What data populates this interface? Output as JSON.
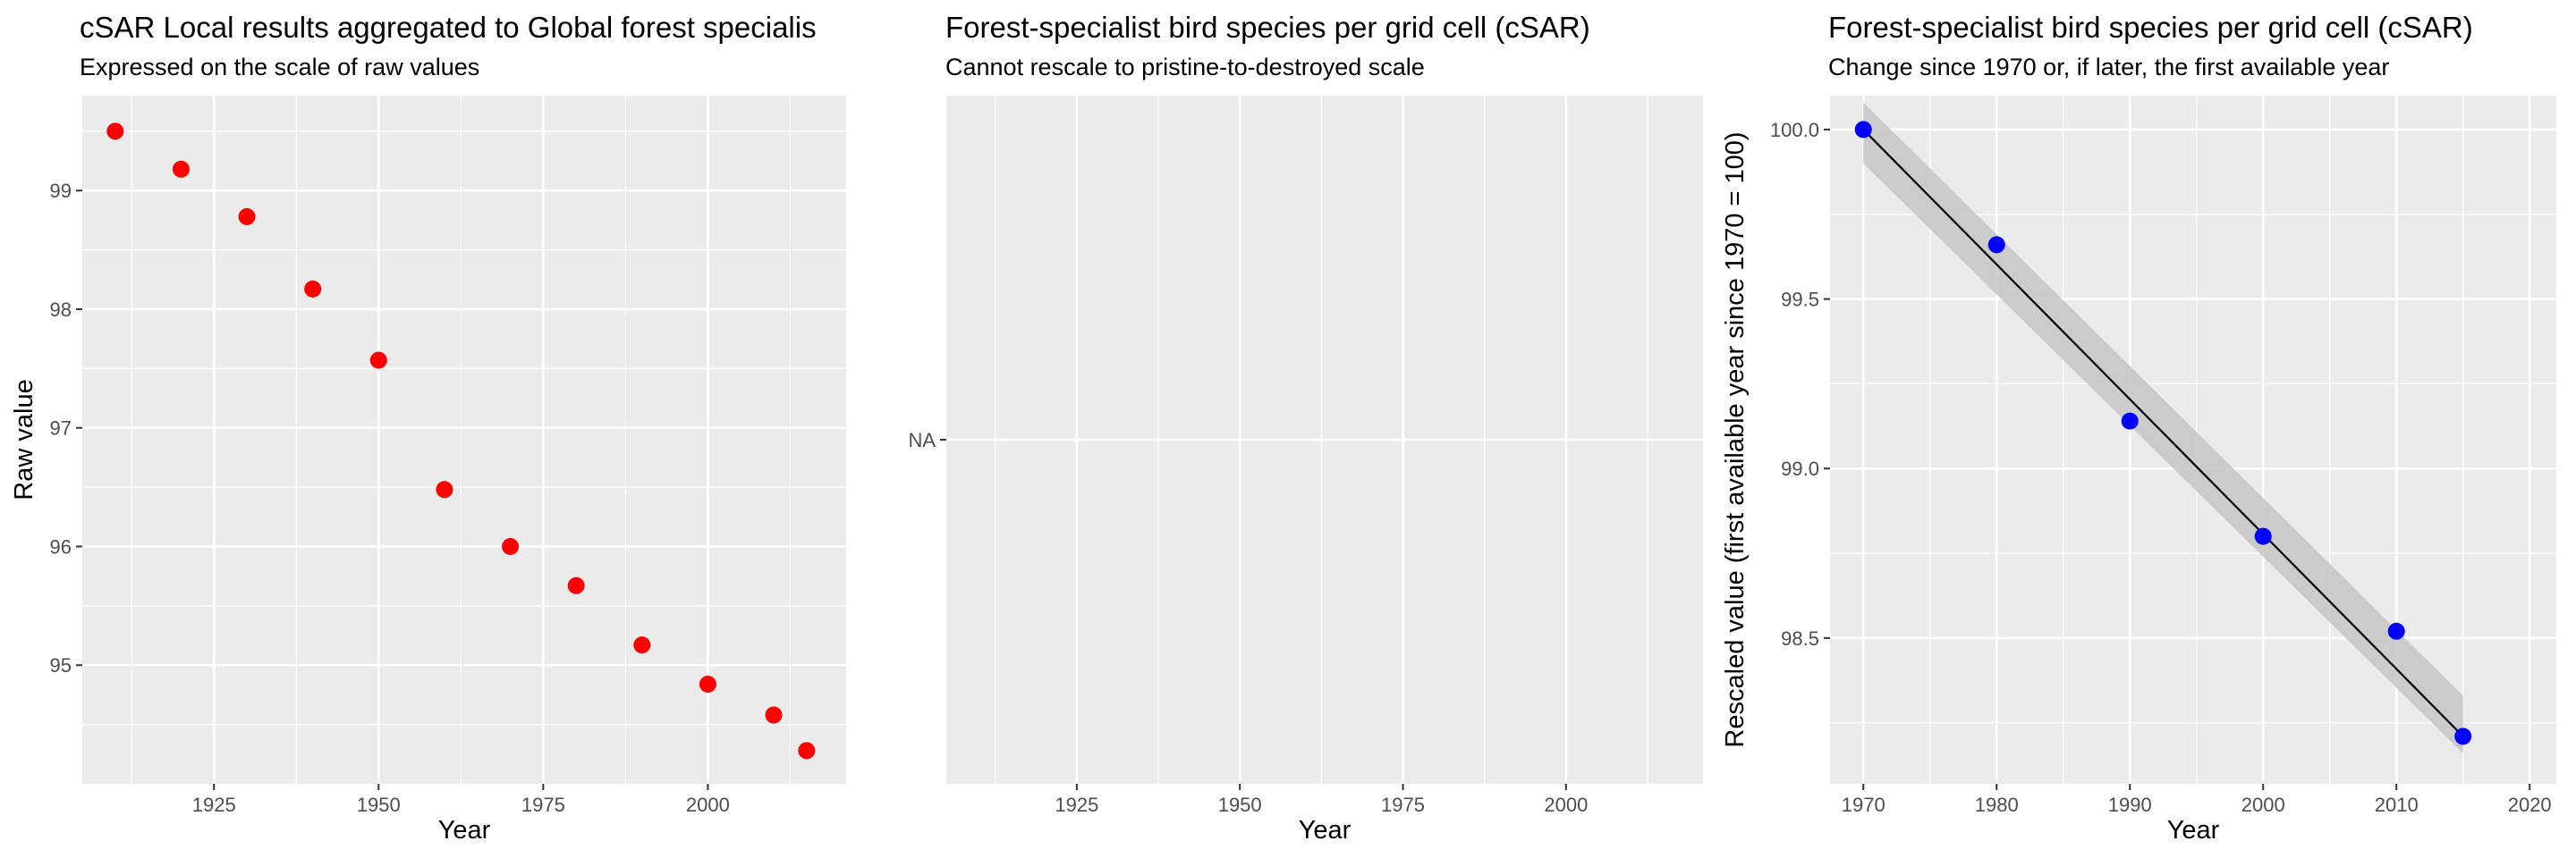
{
  "colors": {
    "panel_background": "#ebebeb",
    "grid_major": "#ffffff",
    "axis_text": "#4d4d4d",
    "point_left": "#ff0000",
    "point_right": "#0000ff",
    "trend_line": "#000000",
    "ribbon": "#c6c6c6"
  },
  "chart_data": [
    {
      "type": "scatter",
      "title": "cSAR Local results aggregated to Global forest specialis",
      "subtitle": "Expressed on the scale of raw values",
      "xlabel": "Year",
      "ylabel": "Raw value",
      "xlim": [
        1905,
        2021
      ],
      "ylim": [
        94.0,
        99.8
      ],
      "x_ticks": [
        1925,
        1950,
        1975,
        2000
      ],
      "y_ticks": [
        95,
        96,
        97,
        98,
        99
      ],
      "grid": true,
      "legend": "none",
      "points": [
        {
          "x": 1910,
          "y": 99.5
        },
        {
          "x": 1920,
          "y": 99.18
        },
        {
          "x": 1930,
          "y": 98.78
        },
        {
          "x": 1940,
          "y": 98.17
        },
        {
          "x": 1950,
          "y": 97.57
        },
        {
          "x": 1960,
          "y": 96.48
        },
        {
          "x": 1970,
          "y": 96.0
        },
        {
          "x": 1980,
          "y": 95.67
        },
        {
          "x": 1990,
          "y": 95.17
        },
        {
          "x": 2000,
          "y": 94.84
        },
        {
          "x": 2010,
          "y": 94.58
        },
        {
          "x": 2015,
          "y": 94.28
        }
      ]
    },
    {
      "type": "scatter",
      "title": "Forest-specialist bird species per grid cell (cSAR)",
      "subtitle": "Cannot rescale to pristine-to-destroyed scale",
      "xlabel": "Year",
      "ylabel": "",
      "xlim": [
        1905,
        2021
      ],
      "x_ticks": [
        1925,
        1950,
        1975,
        2000
      ],
      "y_ticks": [
        "NA"
      ],
      "grid": true,
      "legend": "none",
      "points": []
    },
    {
      "type": "scatter",
      "title": "Forest-specialist bird species per grid cell (cSAR)",
      "subtitle": "Change since 1970 or, if later, the first available year",
      "xlabel": "Year",
      "ylabel": "Rescaled value (first available year since 1970 = 100)",
      "xlim": [
        1967.5,
        2022
      ],
      "ylim": [
        98.07,
        100.1
      ],
      "x_ticks": [
        1970,
        1980,
        1990,
        2000,
        2010,
        2020
      ],
      "y_ticks": [
        98.5,
        99.0,
        99.5,
        100.0
      ],
      "grid": true,
      "legend": "none",
      "points": [
        {
          "x": 1970,
          "y": 100.0
        },
        {
          "x": 1980,
          "y": 99.66
        },
        {
          "x": 1990,
          "y": 99.14
        },
        {
          "x": 2000,
          "y": 98.8
        },
        {
          "x": 2010,
          "y": 98.52
        },
        {
          "x": 2015,
          "y": 98.21
        }
      ],
      "trend": {
        "x": [
          1970,
          2015
        ],
        "y": [
          100.0,
          98.21
        ]
      },
      "ribbon": {
        "x": [
          1970,
          2015
        ],
        "upper": [
          100.08,
          98.33
        ],
        "lower": [
          99.9,
          98.16
        ]
      }
    }
  ]
}
